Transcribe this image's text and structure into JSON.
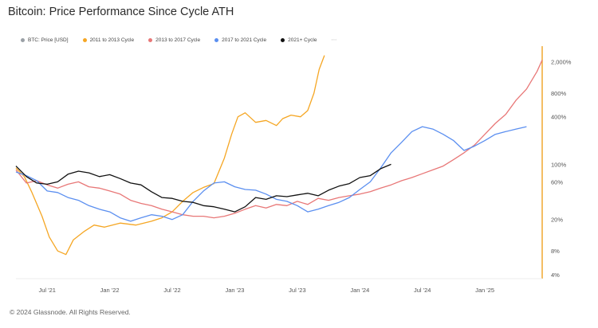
{
  "chart_data": {
    "type": "line",
    "title": "Bitcoin: Price Performance Since Cycle ATH",
    "xlabel": "",
    "ylabel": "",
    "y_scale": "log",
    "y_unit": "% of cycle ATH",
    "ylim": [
      4,
      3000
    ],
    "x_tick_labels": [
      "Jul '21",
      "Jan '22",
      "Jul '22",
      "Jan '23",
      "Jul '23",
      "Jan '24",
      "Jul '24",
      "Jan '25"
    ],
    "x_tick_months": [
      7,
      13,
      19,
      25,
      31,
      37,
      43,
      49
    ],
    "y_tick_labels": [
      "2,000%",
      "800%",
      "400%",
      "100%",
      "60%",
      "20%",
      "8%",
      "4%"
    ],
    "y_tick_values": [
      2000,
      800,
      400,
      100,
      60,
      20,
      8,
      4
    ],
    "x_domain_months": [
      4,
      54.5
    ],
    "legend_position": "top-left",
    "series": [
      {
        "name": "BTC: Price [USD]",
        "color": "#9aa0a6",
        "x": [],
        "values": []
      },
      {
        "name": "2011 to 2013 Cycle",
        "color": "#f5a623",
        "x": [
          4,
          4.8,
          5.5,
          6.5,
          7.2,
          8,
          8.8,
          9.5,
          10.5,
          11.5,
          12.5,
          14,
          15.5,
          17,
          18,
          19,
          20,
          21,
          22,
          23,
          24,
          24.7,
          25.3,
          26,
          27,
          28,
          29,
          29.6,
          30.4,
          31.3,
          32,
          32.6,
          33.1,
          33.6
        ],
        "values": [
          90,
          70,
          45,
          22,
          12,
          8,
          7.2,
          11,
          14,
          17,
          16,
          18,
          17,
          19,
          21,
          25,
          34,
          44,
          51,
          57,
          120,
          240,
          400,
          450,
          340,
          360,
          310,
          380,
          420,
          400,
          480,
          800,
          1600,
          2400
        ]
      },
      {
        "name": "2013 to 2017 Cycle",
        "color": "#e87777",
        "x": [
          4,
          5,
          6,
          7,
          8,
          9,
          10,
          11,
          12,
          13,
          14,
          15,
          16,
          17,
          18,
          19,
          20,
          21,
          22,
          23,
          24,
          25,
          26,
          27,
          28,
          29,
          30,
          31,
          32,
          33,
          34,
          35,
          36,
          37,
          38,
          39,
          40,
          41,
          42,
          43,
          44,
          45,
          46,
          47,
          48,
          49,
          50,
          51,
          52,
          53,
          54,
          54.5
        ],
        "values": [
          85,
          58,
          62,
          55,
          50,
          56,
          60,
          52,
          50,
          46,
          42,
          35,
          32,
          30,
          27,
          25,
          23,
          22,
          22,
          21,
          22,
          24,
          27,
          30,
          28,
          31,
          30,
          34,
          31,
          37,
          35,
          38,
          40,
          42,
          45,
          50,
          55,
          62,
          68,
          76,
          85,
          95,
          115,
          140,
          175,
          240,
          330,
          430,
          650,
          900,
          1500,
          2100
        ]
      },
      {
        "name": "2017 to 2021 Cycle",
        "color": "#5b8ff0",
        "x": [
          4,
          5,
          6,
          7,
          8,
          9,
          10,
          11,
          12,
          13,
          14,
          15,
          16,
          17,
          18,
          19,
          20,
          21,
          22,
          23,
          24,
          25,
          26,
          27,
          28,
          29,
          30,
          31,
          32,
          33,
          34,
          35,
          36,
          37,
          38,
          39,
          40,
          41,
          42,
          43,
          44,
          45,
          46,
          47,
          48,
          49,
          50,
          51,
          52,
          53
        ],
        "values": [
          80,
          72,
          62,
          46,
          44,
          38,
          35,
          30,
          27,
          25,
          21,
          19,
          21,
          23,
          22,
          20,
          23,
          34,
          46,
          58,
          60,
          52,
          48,
          47,
          42,
          36,
          34,
          30,
          25,
          27,
          30,
          33,
          38,
          48,
          60,
          90,
          140,
          190,
          260,
          300,
          280,
          240,
          200,
          150,
          170,
          200,
          240,
          260,
          280,
          300
        ]
      },
      {
        "name": "2021+ Cycle",
        "color": "#111111",
        "x": [
          4,
          5,
          6,
          7,
          8,
          9,
          10,
          11,
          12,
          13,
          14,
          15,
          16,
          17,
          18,
          19,
          20,
          21,
          22,
          23,
          24,
          25,
          26,
          27,
          28,
          29,
          30,
          31,
          32,
          33,
          34,
          35,
          36,
          37,
          38,
          39,
          40
        ],
        "values": [
          95,
          70,
          58,
          56,
          60,
          75,
          82,
          78,
          70,
          74,
          66,
          58,
          55,
          45,
          38,
          37,
          34,
          33,
          30,
          29,
          27,
          25,
          29,
          38,
          36,
          40,
          39,
          41,
          43,
          40,
          47,
          53,
          57,
          68,
          72,
          88,
          100
        ]
      }
    ]
  },
  "footer": "© 2024 Glassnode. All Rights Reserved."
}
